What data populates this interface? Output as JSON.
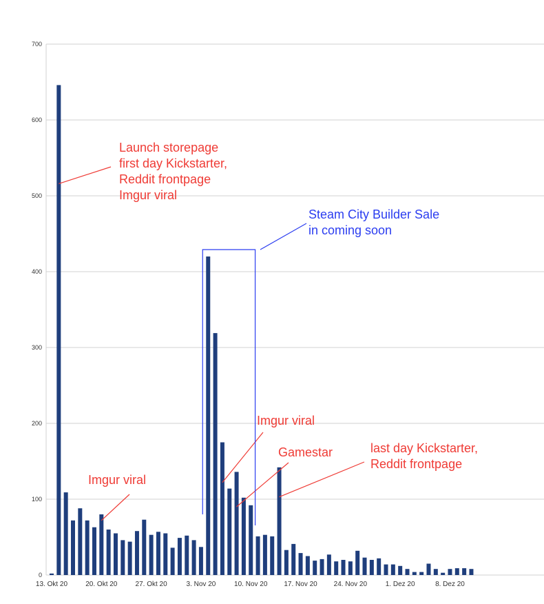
{
  "chart_data": {
    "type": "bar",
    "title": "",
    "xlabel": "",
    "ylabel": "",
    "ylim": [
      0,
      700
    ],
    "yticks": [
      0,
      100,
      200,
      300,
      400,
      500,
      600,
      700
    ],
    "grid": true,
    "colors": {
      "bar": "#1f3e7c",
      "grid": "#d0d0d0",
      "annotation_red": "#ef3b35",
      "annotation_blue": "#2b3df0"
    },
    "x_tick_labels": [
      {
        "index": 0,
        "label": "13. Okt 20"
      },
      {
        "index": 7,
        "label": "20. Okt 20"
      },
      {
        "index": 14,
        "label": "27. Okt 20"
      },
      {
        "index": 21,
        "label": "3. Nov 20"
      },
      {
        "index": 28,
        "label": "10. Nov 20"
      },
      {
        "index": 35,
        "label": "17. Nov 20"
      },
      {
        "index": 42,
        "label": "24. Nov 20"
      },
      {
        "index": 49,
        "label": "1. Dez 20"
      },
      {
        "index": 56,
        "label": "8. Dez 20"
      }
    ],
    "values": [
      2,
      646,
      109,
      72,
      88,
      72,
      63,
      80,
      60,
      55,
      46,
      44,
      58,
      73,
      53,
      57,
      55,
      36,
      49,
      52,
      46,
      37,
      420,
      319,
      175,
      114,
      136,
      102,
      92,
      51,
      53,
      51,
      142,
      33,
      41,
      29,
      25,
      19,
      21,
      27,
      18,
      20,
      18,
      32,
      23,
      20,
      22,
      14,
      14,
      12,
      8,
      4,
      4,
      15,
      8,
      3,
      8,
      9,
      9,
      8
    ],
    "annotations": [
      {
        "color": "red",
        "lines": [
          "Launch storepage",
          "first day Kickstarter,",
          "Reddit frontpage",
          "Imgur viral"
        ],
        "target_index": 1,
        "target_value": 516
      },
      {
        "color": "red",
        "lines": [
          "Imgur viral"
        ],
        "target_index": 7,
        "target_value": 72
      },
      {
        "color": "red",
        "lines": [
          "Imgur viral"
        ],
        "target_index": 24,
        "target_value": 122
      },
      {
        "color": "red",
        "lines": [
          "Gamestar"
        ],
        "target_index": 26,
        "target_value": 90
      },
      {
        "color": "red",
        "lines": [
          "last day Kickstarter,",
          "Reddit frontpage"
        ],
        "target_index": 32,
        "target_value": 103
      },
      {
        "color": "blue",
        "lines": [
          "Steam City Builder Sale",
          "in coming soon"
        ],
        "bracket_from_index": 22,
        "bracket_to_index": 29
      }
    ]
  }
}
